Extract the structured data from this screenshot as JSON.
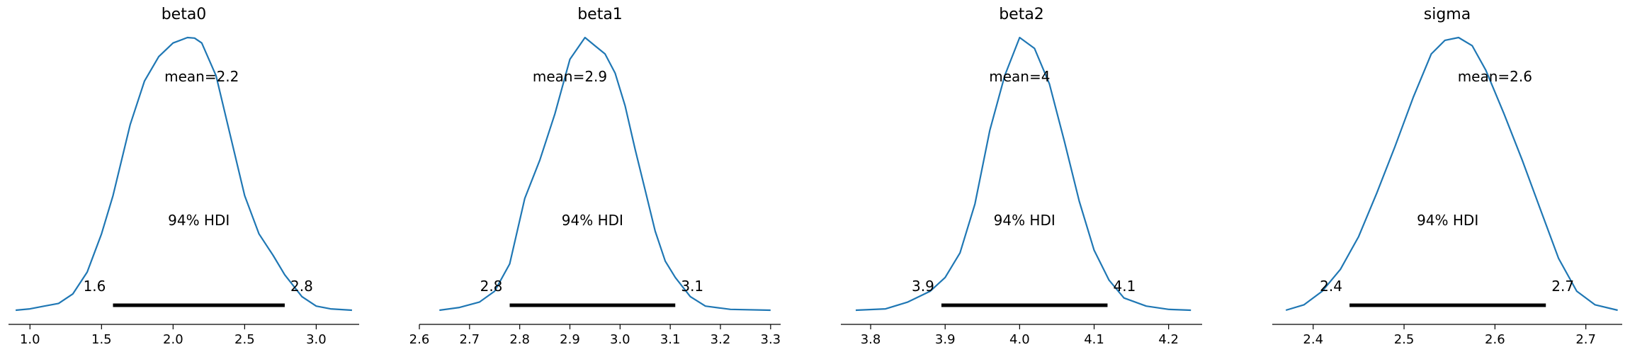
{
  "chart_data": [
    {
      "type": "line",
      "title": "beta0",
      "mean": 2.2,
      "mean_label": "mean=2.2",
      "hdi_label": "94% HDI",
      "hdi": [
        1.58,
        2.78
      ],
      "hdi_low_label": "1.6",
      "hdi_high_label": "2.8",
      "xlim": [
        0.85,
        3.3
      ],
      "xticks": [
        1.0,
        1.5,
        2.0,
        2.5,
        3.0
      ],
      "xtick_labels": [
        "1.0",
        "1.5",
        "2.0",
        "2.5",
        "3.0"
      ],
      "color": "#1f77b4",
      "x": [
        0.9,
        1.0,
        1.1,
        1.2,
        1.3,
        1.4,
        1.5,
        1.58,
        1.7,
        1.8,
        1.9,
        2.0,
        2.1,
        2.15,
        2.2,
        2.3,
        2.4,
        2.5,
        2.6,
        2.7,
        2.78,
        2.9,
        3.0,
        3.1,
        3.25
      ],
      "y": [
        0.0,
        0.005,
        0.015,
        0.025,
        0.06,
        0.14,
        0.28,
        0.42,
        0.68,
        0.84,
        0.93,
        0.98,
        1.0,
        0.998,
        0.98,
        0.86,
        0.64,
        0.42,
        0.28,
        0.2,
        0.13,
        0.05,
        0.015,
        0.005,
        0.0
      ]
    },
    {
      "type": "line",
      "title": "beta1",
      "mean": 2.9,
      "mean_label": "mean=2.9",
      "hdi_label": "94% HDI",
      "hdi": [
        2.78,
        3.11
      ],
      "hdi_low_label": "2.8",
      "hdi_high_label": "3.1",
      "xlim": [
        2.6,
        3.32
      ],
      "xticks": [
        2.6,
        2.7,
        2.8,
        2.9,
        3.0,
        3.1,
        3.2,
        3.3
      ],
      "xtick_labels": [
        "2.6",
        "2.7",
        "2.8",
        "2.9",
        "3.0",
        "3.1",
        "3.2",
        "3.3"
      ],
      "color": "#1f77b4",
      "x": [
        2.64,
        2.68,
        2.72,
        2.75,
        2.78,
        2.81,
        2.84,
        2.87,
        2.9,
        2.93,
        2.95,
        2.97,
        2.99,
        3.01,
        3.03,
        3.05,
        3.07,
        3.09,
        3.11,
        3.14,
        3.17,
        3.22,
        3.3
      ],
      "y": [
        0.0,
        0.01,
        0.03,
        0.07,
        0.17,
        0.41,
        0.55,
        0.72,
        0.92,
        1.0,
        0.97,
        0.94,
        0.87,
        0.75,
        0.59,
        0.44,
        0.29,
        0.18,
        0.12,
        0.05,
        0.015,
        0.003,
        0.0
      ]
    },
    {
      "type": "line",
      "title": "beta2",
      "mean": 4,
      "mean_label": "mean=4",
      "hdi_label": "94% HDI",
      "hdi": [
        3.895,
        4.118
      ],
      "hdi_low_label": "3.9",
      "hdi_high_label": "4.1",
      "xlim": [
        3.76,
        4.245
      ],
      "xticks": [
        3.8,
        3.9,
        4.0,
        4.1,
        4.2
      ],
      "xtick_labels": [
        "3.8",
        "3.9",
        "4.0",
        "4.1",
        "4.2"
      ],
      "color": "#1f77b4",
      "x": [
        3.78,
        3.82,
        3.85,
        3.88,
        3.9,
        3.92,
        3.94,
        3.96,
        3.98,
        4.0,
        4.02,
        4.04,
        4.06,
        4.08,
        4.1,
        4.12,
        4.14,
        4.17,
        4.2,
        4.23
      ],
      "y": [
        0.0,
        0.005,
        0.03,
        0.07,
        0.12,
        0.21,
        0.39,
        0.66,
        0.86,
        1.0,
        0.96,
        0.83,
        0.62,
        0.4,
        0.22,
        0.11,
        0.045,
        0.015,
        0.003,
        0.0
      ]
    },
    {
      "type": "line",
      "title": "sigma",
      "mean": 2.6,
      "mean_label": "mean=2.6",
      "hdi_label": "94% HDI",
      "hdi": [
        2.44,
        2.656
      ],
      "hdi_low_label": "2.4",
      "hdi_high_label": "2.7",
      "xlim": [
        2.355,
        2.74
      ],
      "xticks": [
        2.4,
        2.5,
        2.6,
        2.7
      ],
      "xtick_labels": [
        "2.4",
        "2.5",
        "2.6",
        "2.7"
      ],
      "color": "#1f77b4",
      "x": [
        2.37,
        2.39,
        2.41,
        2.43,
        2.45,
        2.47,
        2.49,
        2.51,
        2.53,
        2.545,
        2.56,
        2.575,
        2.59,
        2.61,
        2.63,
        2.65,
        2.67,
        2.69,
        2.71,
        2.735
      ],
      "y": [
        0.0,
        0.02,
        0.07,
        0.15,
        0.27,
        0.43,
        0.6,
        0.78,
        0.94,
        0.99,
        1.0,
        0.97,
        0.88,
        0.72,
        0.55,
        0.37,
        0.19,
        0.07,
        0.02,
        0.0
      ]
    }
  ]
}
